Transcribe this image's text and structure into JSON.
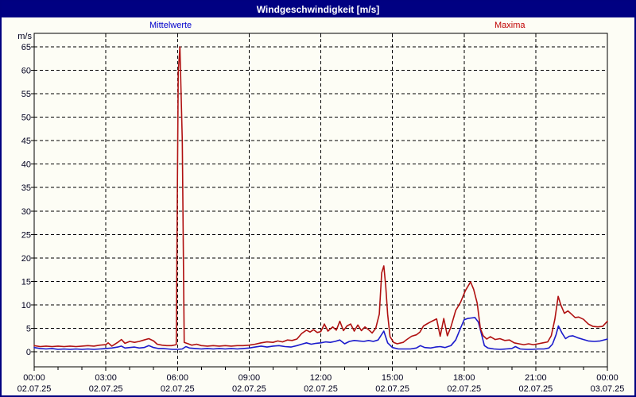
{
  "title": "Windgeschwindigkeit [m/s]",
  "legend": {
    "mean_label": "Mittelwerte",
    "max_label": "Maxima"
  },
  "colors": {
    "titlebar_bg": "#000082",
    "window_border": "#000080",
    "background": "#fdfdf5",
    "mean_line": "#1a1acc",
    "max_line": "#b01111",
    "grid": "#000000"
  },
  "chart_data": {
    "type": "line",
    "title": "Windgeschwindigkeit [m/s]",
    "ylabel": "m/s",
    "xlabel": "",
    "ylim": [
      0,
      65
    ],
    "xlim_hours": [
      0,
      24
    ],
    "grid": "dashed",
    "legend_position": "top",
    "y_ticks": [
      0,
      5,
      10,
      15,
      20,
      25,
      30,
      35,
      40,
      45,
      50,
      55,
      60,
      65
    ],
    "x_major_ticks": [
      {
        "hour": 0,
        "time": "00:00",
        "date": "02.07.25"
      },
      {
        "hour": 3,
        "time": "03:00",
        "date": "02.07.25"
      },
      {
        "hour": 6,
        "time": "06:00",
        "date": "02.07.25"
      },
      {
        "hour": 9,
        "time": "09:00",
        "date": "02.07.25"
      },
      {
        "hour": 12,
        "time": "12:00",
        "date": "02.07.25"
      },
      {
        "hour": 15,
        "time": "15:00",
        "date": "02.07.25"
      },
      {
        "hour": 18,
        "time": "18:00",
        "date": "02.07.25"
      },
      {
        "hour": 21,
        "time": "21:00",
        "date": "02.07.25"
      },
      {
        "hour": 24,
        "time": "00:00",
        "date": "03.07.25"
      }
    ],
    "series": [
      {
        "name": "Mittelwerte",
        "color": "#1a1acc",
        "points": [
          [
            0,
            0.9
          ],
          [
            0.25,
            0.7
          ],
          [
            0.5,
            0.6
          ],
          [
            0.75,
            0.7
          ],
          [
            1,
            0.5
          ],
          [
            1.25,
            0.6
          ],
          [
            1.5,
            0.5
          ],
          [
            1.75,
            0.6
          ],
          [
            2,
            0.5
          ],
          [
            2.25,
            0.6
          ],
          [
            2.5,
            0.5
          ],
          [
            2.75,
            0.6
          ],
          [
            3,
            0.7
          ],
          [
            3.25,
            0.8
          ],
          [
            3.5,
            1.0
          ],
          [
            3.65,
            1.2
          ],
          [
            3.8,
            0.8
          ],
          [
            4,
            0.9
          ],
          [
            4.2,
            1.0
          ],
          [
            4.4,
            0.8
          ],
          [
            4.6,
            0.9
          ],
          [
            4.8,
            1.3
          ],
          [
            5,
            0.9
          ],
          [
            5.2,
            0.7
          ],
          [
            5.4,
            0.7
          ],
          [
            5.6,
            0.6
          ],
          [
            5.8,
            0.5
          ],
          [
            6,
            0.5
          ],
          [
            6.2,
            0.6
          ],
          [
            6.35,
            1.1
          ],
          [
            6.5,
            0.8
          ],
          [
            6.75,
            0.7
          ],
          [
            7,
            0.6
          ],
          [
            7.25,
            0.7
          ],
          [
            7.5,
            0.6
          ],
          [
            7.75,
            0.7
          ],
          [
            8,
            0.6
          ],
          [
            8.25,
            0.7
          ],
          [
            8.5,
            0.6
          ],
          [
            8.75,
            0.7
          ],
          [
            9,
            0.8
          ],
          [
            9.25,
            1.0
          ],
          [
            9.5,
            1.2
          ],
          [
            9.75,
            1.0
          ],
          [
            10,
            1.2
          ],
          [
            10.25,
            1.3
          ],
          [
            10.5,
            1.1
          ],
          [
            10.75,
            1.0
          ],
          [
            11,
            1.3
          ],
          [
            11.2,
            1.6
          ],
          [
            11.4,
            1.9
          ],
          [
            11.6,
            1.6
          ],
          [
            11.8,
            1.8
          ],
          [
            12,
            1.9
          ],
          [
            12.2,
            2.1
          ],
          [
            12.4,
            2.0
          ],
          [
            12.6,
            2.2
          ],
          [
            12.8,
            2.5
          ],
          [
            13,
            1.7
          ],
          [
            13.2,
            2.2
          ],
          [
            13.4,
            2.4
          ],
          [
            13.6,
            2.3
          ],
          [
            13.8,
            2.2
          ],
          [
            14,
            2.4
          ],
          [
            14.2,
            2.2
          ],
          [
            14.4,
            2.5
          ],
          [
            14.64,
            4.4
          ],
          [
            14.8,
            1.9
          ],
          [
            15,
            0.9
          ],
          [
            15.25,
            0.6
          ],
          [
            15.5,
            0.6
          ],
          [
            15.75,
            0.6
          ],
          [
            16,
            0.8
          ],
          [
            16.17,
            1.3
          ],
          [
            16.35,
            0.9
          ],
          [
            16.6,
            0.8
          ],
          [
            16.8,
            1.0
          ],
          [
            17,
            1.1
          ],
          [
            17.2,
            0.9
          ],
          [
            17.45,
            1.3
          ],
          [
            17.65,
            2.5
          ],
          [
            17.85,
            5.0
          ],
          [
            18,
            6.8
          ],
          [
            18.15,
            7.1
          ],
          [
            18.3,
            7.2
          ],
          [
            18.45,
            7.3
          ],
          [
            18.6,
            6.3
          ],
          [
            18.7,
            4.3
          ],
          [
            18.85,
            1.3
          ],
          [
            19,
            0.8
          ],
          [
            19.25,
            0.6
          ],
          [
            19.5,
            0.5
          ],
          [
            19.75,
            0.6
          ],
          [
            20,
            0.7
          ],
          [
            20.15,
            1.1
          ],
          [
            20.35,
            0.6
          ],
          [
            20.6,
            0.5
          ],
          [
            20.85,
            0.5
          ],
          [
            21.1,
            0.6
          ],
          [
            21.35,
            0.6
          ],
          [
            21.55,
            0.8
          ],
          [
            21.7,
            1.6
          ],
          [
            21.85,
            3.6
          ],
          [
            21.95,
            5.5
          ],
          [
            22.1,
            4.0
          ],
          [
            22.25,
            2.8
          ],
          [
            22.4,
            3.3
          ],
          [
            22.55,
            3.4
          ],
          [
            22.75,
            3.0
          ],
          [
            23,
            2.6
          ],
          [
            23.2,
            2.3
          ],
          [
            23.45,
            2.2
          ],
          [
            23.7,
            2.3
          ],
          [
            24,
            2.7
          ]
        ]
      },
      {
        "name": "Maxima",
        "color": "#b01111",
        "points": [
          [
            0,
            1.3
          ],
          [
            0.25,
            1.1
          ],
          [
            0.5,
            1.2
          ],
          [
            0.75,
            1.1
          ],
          [
            1,
            1.2
          ],
          [
            1.25,
            1.1
          ],
          [
            1.5,
            1.2
          ],
          [
            1.75,
            1.1
          ],
          [
            2,
            1.2
          ],
          [
            2.25,
            1.3
          ],
          [
            2.5,
            1.2
          ],
          [
            2.75,
            1.4
          ],
          [
            3,
            1.5
          ],
          [
            3.1,
            1.9
          ],
          [
            3.25,
            1.2
          ],
          [
            3.5,
            2.0
          ],
          [
            3.65,
            2.6
          ],
          [
            3.8,
            1.8
          ],
          [
            4,
            2.2
          ],
          [
            4.2,
            2.0
          ],
          [
            4.4,
            2.2
          ],
          [
            4.6,
            2.5
          ],
          [
            4.8,
            2.8
          ],
          [
            5,
            2.3
          ],
          [
            5.15,
            1.6
          ],
          [
            5.35,
            1.4
          ],
          [
            5.55,
            1.3
          ],
          [
            5.75,
            1.3
          ],
          [
            5.95,
            1.5
          ],
          [
            6.03,
            59.5
          ],
          [
            6.1,
            65
          ],
          [
            6.2,
            45
          ],
          [
            6.28,
            2.0
          ],
          [
            6.45,
            1.7
          ],
          [
            6.6,
            1.4
          ],
          [
            6.8,
            1.6
          ],
          [
            7,
            1.3
          ],
          [
            7.25,
            1.2
          ],
          [
            7.5,
            1.3
          ],
          [
            7.75,
            1.2
          ],
          [
            8,
            1.3
          ],
          [
            8.25,
            1.2
          ],
          [
            8.5,
            1.3
          ],
          [
            8.75,
            1.3
          ],
          [
            9,
            1.4
          ],
          [
            9.25,
            1.6
          ],
          [
            9.5,
            1.9
          ],
          [
            9.75,
            2.1
          ],
          [
            10,
            2.0
          ],
          [
            10.2,
            2.3
          ],
          [
            10.4,
            2.1
          ],
          [
            10.6,
            2.5
          ],
          [
            10.8,
            2.4
          ],
          [
            11,
            2.7
          ],
          [
            11.2,
            3.9
          ],
          [
            11.4,
            4.6
          ],
          [
            11.55,
            4.2
          ],
          [
            11.7,
            4.7
          ],
          [
            11.85,
            4.1
          ],
          [
            12,
            4.3
          ],
          [
            12.15,
            5.9
          ],
          [
            12.3,
            4.4
          ],
          [
            12.5,
            5.3
          ],
          [
            12.65,
            4.6
          ],
          [
            12.8,
            6.5
          ],
          [
            12.95,
            4.5
          ],
          [
            13.1,
            5.5
          ],
          [
            13.25,
            5.9
          ],
          [
            13.4,
            4.4
          ],
          [
            13.55,
            5.7
          ],
          [
            13.7,
            4.5
          ],
          [
            13.85,
            5.3
          ],
          [
            14,
            4.7
          ],
          [
            14.15,
            4.0
          ],
          [
            14.3,
            5.0
          ],
          [
            14.45,
            8.0
          ],
          [
            14.55,
            16.8
          ],
          [
            14.64,
            18.3
          ],
          [
            14.72,
            14.0
          ],
          [
            14.8,
            8.0
          ],
          [
            14.9,
            3.2
          ],
          [
            15.05,
            2.0
          ],
          [
            15.2,
            1.7
          ],
          [
            15.45,
            2.0
          ],
          [
            15.6,
            2.6
          ],
          [
            15.8,
            3.3
          ],
          [
            16,
            3.6
          ],
          [
            16.15,
            4.2
          ],
          [
            16.3,
            5.5
          ],
          [
            16.5,
            6.1
          ],
          [
            16.65,
            6.5
          ],
          [
            16.85,
            7.0
          ],
          [
            17,
            3.3
          ],
          [
            17.15,
            7.1
          ],
          [
            17.3,
            3.4
          ],
          [
            17.45,
            5.3
          ],
          [
            17.65,
            8.8
          ],
          [
            17.85,
            10.5
          ],
          [
            18.05,
            13.0
          ],
          [
            18.27,
            14.9
          ],
          [
            18.4,
            13.3
          ],
          [
            18.55,
            10.3
          ],
          [
            18.68,
            5.0
          ],
          [
            18.8,
            3.4
          ],
          [
            18.95,
            2.7
          ],
          [
            19.1,
            3.2
          ],
          [
            19.3,
            2.6
          ],
          [
            19.5,
            2.8
          ],
          [
            19.7,
            2.4
          ],
          [
            19.9,
            2.5
          ],
          [
            20.1,
            1.9
          ],
          [
            20.3,
            1.7
          ],
          [
            20.5,
            1.5
          ],
          [
            20.7,
            1.7
          ],
          [
            20.9,
            1.5
          ],
          [
            21.1,
            1.7
          ],
          [
            21.3,
            1.9
          ],
          [
            21.5,
            2.1
          ],
          [
            21.65,
            3.4
          ],
          [
            21.8,
            6.9
          ],
          [
            21.94,
            11.8
          ],
          [
            22.05,
            10.0
          ],
          [
            22.2,
            8.2
          ],
          [
            22.35,
            8.7
          ],
          [
            22.5,
            8.0
          ],
          [
            22.65,
            7.3
          ],
          [
            22.8,
            7.4
          ],
          [
            23,
            6.9
          ],
          [
            23.2,
            5.9
          ],
          [
            23.4,
            5.4
          ],
          [
            23.6,
            5.3
          ],
          [
            23.8,
            5.4
          ],
          [
            24,
            6.5
          ]
        ]
      }
    ]
  }
}
